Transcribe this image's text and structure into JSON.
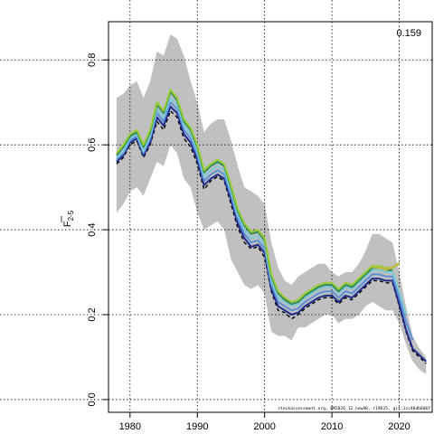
{
  "chart_data": {
    "type": "line",
    "title": "",
    "xlabel": "",
    "ylabel": "F",
    "ylabel_subscript": "2-5",
    "xlim": [
      1976.8,
      2024.9
    ],
    "ylim": [
      -0.03,
      0.89
    ],
    "x_ticks": [
      1980,
      1990,
      2000,
      2010,
      2020
    ],
    "y_ticks": [
      0.0,
      0.2,
      0.4,
      0.6,
      0.8
    ],
    "x_tick_labels": [
      "1980",
      "1990",
      "2000",
      "2010",
      "2020"
    ],
    "y_tick_labels": [
      "0.0",
      "0.2",
      "0.4",
      "0.6",
      "0.8"
    ],
    "grid": true,
    "corner_value": "0.159",
    "footer_note": "stockassessment.org, BM2026_12_newAR, r19625, git:1cc464b806f",
    "confidence_band": {
      "x": [
        1978,
        1979,
        1980,
        1981,
        1982,
        1983,
        1984,
        1985,
        1986,
        1987,
        1988,
        1989,
        1990,
        1991,
        1992,
        1993,
        1994,
        1995,
        1996,
        1997,
        1998,
        1999,
        2000,
        2001,
        2002,
        2003,
        2004,
        2005,
        2006,
        2007,
        2008,
        2009,
        2010,
        2011,
        2012,
        2013,
        2014,
        2015,
        2016,
        2017,
        2018,
        2019,
        2020,
        2021,
        2022,
        2023,
        2024
      ],
      "lower": [
        0.44,
        0.46,
        0.49,
        0.5,
        0.48,
        0.52,
        0.56,
        0.55,
        0.6,
        0.58,
        0.52,
        0.5,
        0.44,
        0.4,
        0.41,
        0.42,
        0.4,
        0.33,
        0.3,
        0.27,
        0.26,
        0.27,
        0.25,
        0.16,
        0.15,
        0.15,
        0.14,
        0.17,
        0.17,
        0.18,
        0.19,
        0.2,
        0.2,
        0.18,
        0.19,
        0.19,
        0.2,
        0.22,
        0.23,
        0.22,
        0.21,
        0.21,
        0.18,
        0.13,
        0.09,
        0.07,
        0.06
      ],
      "upper": [
        0.71,
        0.72,
        0.74,
        0.75,
        0.71,
        0.75,
        0.82,
        0.81,
        0.86,
        0.85,
        0.81,
        0.75,
        0.7,
        0.63,
        0.65,
        0.66,
        0.66,
        0.61,
        0.55,
        0.5,
        0.49,
        0.48,
        0.46,
        0.37,
        0.31,
        0.28,
        0.27,
        0.29,
        0.3,
        0.31,
        0.32,
        0.32,
        0.3,
        0.29,
        0.3,
        0.3,
        0.32,
        0.35,
        0.39,
        0.39,
        0.38,
        0.37,
        0.3,
        0.22,
        0.15,
        0.12,
        0.1
      ]
    },
    "series": [
      {
        "color": "#000000",
        "dashed": true,
        "x": [
          1978,
          1979,
          1980,
          1981,
          1982,
          1983,
          1984,
          1985,
          1986,
          1987,
          1988,
          1989,
          1990,
          1991,
          1992,
          1993,
          1994,
          1995,
          1996,
          1997,
          1998,
          1999,
          2000,
          2001,
          2002,
          2003,
          2004,
          2005,
          2006,
          2007,
          2008,
          2009,
          2010,
          2011,
          2012,
          2013,
          2014,
          2015,
          2016,
          2017,
          2018,
          2019,
          2020,
          2021,
          2022,
          2023,
          2024
        ],
        "values": [
          0.555,
          0.57,
          0.6,
          0.61,
          0.57,
          0.6,
          0.655,
          0.635,
          0.68,
          0.665,
          0.615,
          0.595,
          0.555,
          0.495,
          0.515,
          0.525,
          0.515,
          0.46,
          0.405,
          0.37,
          0.355,
          0.36,
          0.335,
          0.255,
          0.21,
          0.205,
          0.19,
          0.2,
          0.215,
          0.225,
          0.235,
          0.24,
          0.24,
          0.225,
          0.24,
          0.235,
          0.25,
          0.265,
          0.28,
          0.28,
          0.275,
          0.275,
          0.22,
          0.16,
          0.115,
          0.1,
          0.085
        ]
      },
      {
        "color": "#1f2a8a",
        "dashed": false,
        "x": [
          1978,
          1979,
          1980,
          1981,
          1982,
          1983,
          1984,
          1985,
          1986,
          1987,
          1988,
          1989,
          1990,
          1991,
          1992,
          1993,
          1994,
          1995,
          1996,
          1997,
          1998,
          1999,
          2000,
          2001,
          2002,
          2003,
          2004,
          2005,
          2006,
          2007,
          2008,
          2009,
          2010,
          2011,
          2012,
          2013,
          2014,
          2015,
          2016,
          2017,
          2018,
          2019,
          2020,
          2021,
          2022,
          2023,
          2024
        ],
        "values": [
          0.56,
          0.575,
          0.605,
          0.615,
          0.575,
          0.605,
          0.665,
          0.645,
          0.69,
          0.675,
          0.625,
          0.605,
          0.565,
          0.505,
          0.52,
          0.53,
          0.52,
          0.47,
          0.415,
          0.38,
          0.36,
          0.365,
          0.345,
          0.26,
          0.22,
          0.21,
          0.2,
          0.205,
          0.22,
          0.23,
          0.24,
          0.245,
          0.245,
          0.23,
          0.245,
          0.24,
          0.255,
          0.27,
          0.285,
          0.285,
          0.28,
          0.28,
          0.225,
          0.165,
          0.12,
          0.105,
          0.09
        ]
      },
      {
        "color": "#5b8fd6",
        "dashed": false,
        "x": [
          1978,
          1979,
          1980,
          1981,
          1982,
          1983,
          1984,
          1985,
          1986,
          1987,
          1988,
          1989,
          1990,
          1991,
          1992,
          1993,
          1994,
          1995,
          1996,
          1997,
          1998,
          1999,
          2000,
          2001,
          2002,
          2003,
          2004,
          2005,
          2006,
          2007,
          2008,
          2009,
          2010,
          2011,
          2012,
          2013,
          2014,
          2015,
          2016,
          2017,
          2018,
          2019,
          2020,
          2021,
          2022
        ],
        "values": [
          0.565,
          0.58,
          0.61,
          0.62,
          0.58,
          0.615,
          0.675,
          0.655,
          0.7,
          0.685,
          0.635,
          0.615,
          0.575,
          0.515,
          0.53,
          0.54,
          0.53,
          0.48,
          0.425,
          0.39,
          0.37,
          0.375,
          0.355,
          0.27,
          0.23,
          0.22,
          0.21,
          0.215,
          0.23,
          0.24,
          0.25,
          0.255,
          0.255,
          0.24,
          0.255,
          0.25,
          0.265,
          0.28,
          0.295,
          0.295,
          0.29,
          0.29,
          0.24,
          0.185,
          0.14
        ]
      },
      {
        "color": "#7ec8d8",
        "dashed": false,
        "x": [
          1978,
          1979,
          1980,
          1981,
          1982,
          1983,
          1984,
          1985,
          1986,
          1987,
          1988,
          1989,
          1990,
          1991,
          1992,
          1993,
          1994,
          1995,
          1996,
          1997,
          1998,
          1999,
          2000,
          2001,
          2002,
          2003,
          2004,
          2005,
          2006,
          2007,
          2008,
          2009,
          2010,
          2011,
          2012,
          2013,
          2014,
          2015,
          2016,
          2017,
          2018,
          2019,
          2020,
          2021
        ],
        "values": [
          0.57,
          0.585,
          0.615,
          0.625,
          0.585,
          0.62,
          0.685,
          0.665,
          0.71,
          0.695,
          0.645,
          0.625,
          0.585,
          0.525,
          0.54,
          0.55,
          0.54,
          0.49,
          0.435,
          0.4,
          0.38,
          0.385,
          0.365,
          0.28,
          0.24,
          0.23,
          0.22,
          0.225,
          0.24,
          0.25,
          0.26,
          0.265,
          0.265,
          0.25,
          0.265,
          0.26,
          0.275,
          0.29,
          0.305,
          0.305,
          0.3,
          0.3,
          0.255,
          0.2
        ]
      },
      {
        "color": "#2e8b57",
        "dashed": false,
        "x": [
          1978,
          1979,
          1980,
          1981,
          1982,
          1983,
          1984,
          1985,
          1986,
          1987,
          1988,
          1989,
          1990,
          1991,
          1992,
          1993,
          1994,
          1995,
          1996,
          1997,
          1998,
          1999,
          2000,
          2001,
          2002,
          2003,
          2004,
          2005,
          2006,
          2007,
          2008,
          2009,
          2010,
          2011,
          2012,
          2013,
          2014,
          2015,
          2016,
          2017,
          2018,
          2019
        ],
        "values": [
          0.575,
          0.595,
          0.62,
          0.63,
          0.595,
          0.63,
          0.695,
          0.675,
          0.725,
          0.705,
          0.655,
          0.635,
          0.595,
          0.535,
          0.55,
          0.56,
          0.55,
          0.5,
          0.445,
          0.41,
          0.39,
          0.395,
          0.375,
          0.29,
          0.25,
          0.235,
          0.225,
          0.23,
          0.245,
          0.255,
          0.265,
          0.27,
          0.27,
          0.255,
          0.27,
          0.265,
          0.28,
          0.295,
          0.31,
          0.31,
          0.305,
          0.305
        ]
      },
      {
        "color": "#9acd32",
        "dashed": false,
        "x": [
          1978,
          1979,
          1980,
          1981,
          1982,
          1983,
          1984,
          1985,
          1986,
          1987,
          1988,
          1989,
          1990,
          1991,
          1992,
          1993,
          1994,
          1995,
          1996,
          1997,
          1998,
          1999,
          2000,
          2001,
          2002,
          2003,
          2004,
          2005,
          2006,
          2007,
          2008,
          2009,
          2010,
          2011,
          2012,
          2013,
          2014,
          2015,
          2016,
          2017,
          2018,
          2019,
          2020
        ],
        "values": [
          0.58,
          0.6,
          0.625,
          0.635,
          0.6,
          0.635,
          0.7,
          0.68,
          0.73,
          0.71,
          0.66,
          0.64,
          0.6,
          0.54,
          0.555,
          0.565,
          0.555,
          0.505,
          0.45,
          0.415,
          0.395,
          0.4,
          0.38,
          0.295,
          0.255,
          0.24,
          0.23,
          0.235,
          0.25,
          0.26,
          0.27,
          0.275,
          0.275,
          0.26,
          0.275,
          0.27,
          0.285,
          0.3,
          0.315,
          0.315,
          0.31,
          0.31,
          0.32
        ]
      },
      {
        "color": "#c8b84a",
        "dashed": false,
        "x": [
          2016,
          2017,
          2018,
          2019,
          2020
        ],
        "values": [
          0.312,
          0.31,
          0.305,
          0.312,
          0.322
        ]
      }
    ]
  }
}
